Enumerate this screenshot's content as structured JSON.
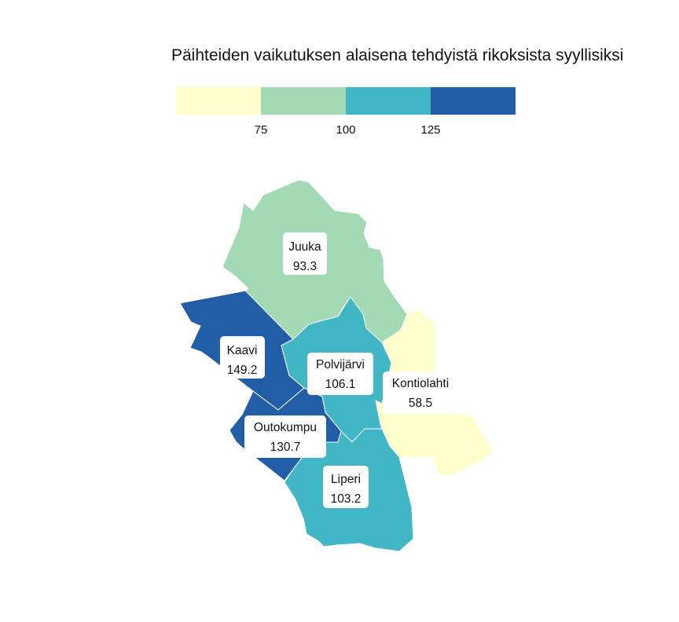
{
  "title": "Päihteiden vaikutuksen alaisena tehdyistä rikoksista syyllisiksi",
  "legend": {
    "bins": [
      {
        "color": "#FFFFCC"
      },
      {
        "color": "#A1DAB4"
      },
      {
        "color": "#41B6C4"
      },
      {
        "color": "#225EA8"
      }
    ],
    "breaks": [
      "75",
      "100",
      "125"
    ]
  },
  "regions": [
    {
      "name": "Juuka",
      "value": "93.3",
      "color": "#A1DAB4"
    },
    {
      "name": "Kaavi",
      "value": "149.2",
      "color": "#225EA8"
    },
    {
      "name": "Polvijärvi",
      "value": "106.1",
      "color": "#41B6C4"
    },
    {
      "name": "Kontiolahti",
      "value": "58.5",
      "color": "#FFFFCC"
    },
    {
      "name": "Outokumpu",
      "value": "130.7",
      "color": "#225EA8"
    },
    {
      "name": "Liperi",
      "value": "103.2",
      "color": "#41B6C4"
    }
  ]
}
